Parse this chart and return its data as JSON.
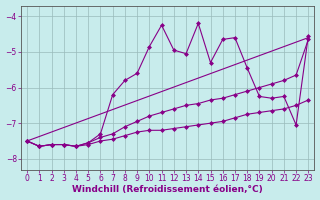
{
  "xlabel": "Windchill (Refroidissement éolien,°C)",
  "ylabel": "",
  "bg_color": "#c8ecec",
  "line_color": "#880088",
  "grid_color": "#99bbbb",
  "xlim": [
    -0.5,
    23.5
  ],
  "ylim": [
    -8.3,
    -3.7
  ],
  "yticks": [
    -8,
    -7,
    -6,
    -5,
    -4
  ],
  "xticks": [
    0,
    1,
    2,
    3,
    4,
    5,
    6,
    7,
    8,
    9,
    10,
    11,
    12,
    13,
    14,
    15,
    16,
    17,
    18,
    19,
    20,
    21,
    22,
    23
  ],
  "series": [
    {
      "x": [
        0,
        1,
        2,
        3,
        4,
        5,
        6,
        7,
        8,
        9,
        10,
        11,
        12,
        13,
        14,
        15,
        16,
        17,
        18,
        19,
        20,
        21,
        22,
        23
      ],
      "y": [
        -7.5,
        -7.65,
        -7.6,
        -7.6,
        -7.65,
        -7.6,
        -7.5,
        -7.45,
        -7.35,
        -7.25,
        -7.2,
        -7.2,
        -7.15,
        -7.1,
        -7.05,
        -7.0,
        -6.95,
        -6.85,
        -6.75,
        -6.7,
        -6.65,
        -6.6,
        -6.5,
        -6.35
      ],
      "marker": "D",
      "markersize": 2.0,
      "linewidth": 0.8
    },
    {
      "x": [
        0,
        1,
        2,
        3,
        4,
        5,
        6,
        7,
        8,
        9,
        10,
        11,
        12,
        13,
        14,
        15,
        16,
        17,
        18,
        19,
        20,
        21,
        22,
        23
      ],
      "y": [
        -7.5,
        -7.65,
        -7.6,
        -7.6,
        -7.65,
        -7.55,
        -7.4,
        -7.3,
        -7.1,
        -6.95,
        -6.8,
        -6.7,
        -6.6,
        -6.5,
        -6.45,
        -6.35,
        -6.3,
        -6.2,
        -6.1,
        -6.0,
        -5.9,
        -5.8,
        -5.65,
        -4.65
      ],
      "marker": "D",
      "markersize": 2.0,
      "linewidth": 0.8
    },
    {
      "x": [
        0,
        23
      ],
      "y": [
        -7.5,
        -4.6
      ],
      "marker": null,
      "markersize": 0,
      "linewidth": 0.8
    },
    {
      "x": [
        0,
        1,
        2,
        3,
        4,
        5,
        6,
        7,
        8,
        9,
        10,
        11,
        12,
        13,
        14,
        15,
        16,
        17,
        18,
        19,
        20,
        21,
        22,
        23
      ],
      "y": [
        -7.5,
        -7.65,
        -7.6,
        -7.6,
        -7.65,
        -7.55,
        -7.3,
        -6.2,
        -5.8,
        -5.6,
        -4.85,
        -4.25,
        -4.95,
        -5.05,
        -4.2,
        -5.3,
        -4.65,
        -4.6,
        -5.45,
        -6.25,
        -6.3,
        -6.25,
        -7.05,
        -4.55
      ],
      "marker": "D",
      "markersize": 2.0,
      "linewidth": 0.8
    }
  ],
  "tick_fontsize": 5.5,
  "label_fontsize": 6.5,
  "tick_color": "#880088",
  "spine_color": "#555555"
}
